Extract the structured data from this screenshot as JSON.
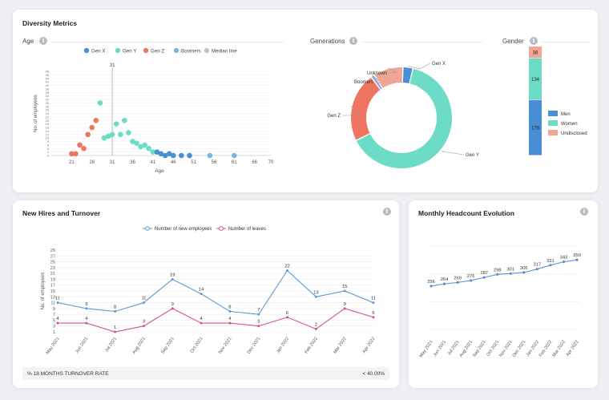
{
  "diversity": {
    "title": "Diversity Metrics",
    "age": {
      "label": "Age",
      "legend": [
        "Gen X",
        "Gen Y",
        "Gen Z",
        "Boomers",
        "Median line"
      ],
      "xlabel": "Age",
      "ylabel": "No. of employees",
      "xticks": [
        "21",
        "26",
        "31",
        "36",
        "41",
        "46",
        "51",
        "56",
        "61",
        "66",
        "70"
      ],
      "yticks": [
        "0",
        "2",
        "4",
        "6",
        "8",
        "10",
        "12",
        "14",
        "16",
        "18",
        "20",
        "22",
        "24",
        "26",
        "28",
        "30",
        "32",
        "34",
        "36",
        "38",
        "40",
        "42",
        "44",
        "46",
        "48"
      ],
      "median_label": "31"
    },
    "generations": {
      "label": "Generations",
      "slices": [
        "Gen X",
        "Gen Y",
        "Gen Z",
        "Boomers",
        "Unknown"
      ]
    },
    "gender": {
      "label": "Gender",
      "legend": [
        "Men",
        "Women",
        "Undisclosed"
      ],
      "values": [
        "178",
        "134",
        "38"
      ]
    }
  },
  "hires": {
    "title": "New Hires and Turnover",
    "legend": [
      "Number of new employees",
      "Number of leaves"
    ],
    "ylabel": "No. of employees",
    "yticks": [
      "1",
      "3",
      "5",
      "7",
      "9",
      "11",
      "13",
      "15",
      "17",
      "19",
      "21",
      "23",
      "25",
      "27",
      "29"
    ],
    "turnover_label": "% 18 MONTHS TURNOVER RATE",
    "turnover_value": "< 40.00%"
  },
  "headcount": {
    "title": "Monthly Headcount Evolution"
  },
  "colors": {
    "genx": "#4a8fd4",
    "geny": "#6ddcc6",
    "genz": "#ee7560",
    "boomers": "#7ab6e0",
    "median": "#c4c4c4",
    "unknown": "#f0a597",
    "hires_line": "#5b9bd5",
    "leaves_line": "#d9566e",
    "headcount_line": "#5b8fd0"
  },
  "chart_data": [
    {
      "type": "scatter",
      "title": "Age",
      "xlabel": "Age",
      "ylabel": "No. of employees",
      "xlim": [
        16,
        70
      ],
      "ylim": [
        0,
        48
      ],
      "median": 31,
      "series": [
        {
          "name": "Gen Z",
          "points": [
            [
              21,
              1
            ],
            [
              22,
              1
            ],
            [
              23,
              6
            ],
            [
              24,
              4
            ],
            [
              25,
              12
            ],
            [
              26,
              16
            ],
            [
              27,
              20
            ]
          ]
        },
        {
          "name": "Gen Y",
          "points": [
            [
              28,
              30
            ],
            [
              29,
              10
            ],
            [
              30,
              11
            ],
            [
              31,
              12
            ],
            [
              32,
              18
            ],
            [
              33,
              12
            ],
            [
              34,
              20
            ],
            [
              35,
              13
            ],
            [
              36,
              8
            ],
            [
              37,
              7
            ],
            [
              38,
              5
            ],
            [
              39,
              6
            ],
            [
              40,
              4
            ],
            [
              41,
              2
            ]
          ]
        },
        {
          "name": "Gen X",
          "points": [
            [
              42,
              2
            ],
            [
              43,
              1
            ],
            [
              44,
              0
            ],
            [
              45,
              1
            ],
            [
              46,
              0
            ],
            [
              48,
              0
            ],
            [
              50,
              0
            ]
          ]
        },
        {
          "name": "Boomers",
          "points": [
            [
              55,
              0
            ],
            [
              61,
              0
            ]
          ]
        }
      ]
    },
    {
      "type": "pie",
      "title": "Generations",
      "categories": [
        "Gen X",
        "Gen Y",
        "Gen Z",
        "Boomers",
        "Unknown"
      ],
      "values": [
        11,
        222,
        77,
        4,
        33
      ]
    },
    {
      "type": "bar",
      "title": "Gender",
      "categories": [
        "Men",
        "Women",
        "Undisclosed"
      ],
      "values": [
        178,
        134,
        38
      ]
    },
    {
      "type": "line",
      "title": "New Hires and Turnover",
      "categories": [
        "May 2021",
        "Jun 2021",
        "Jul 2021",
        "Aug 2021",
        "Sep 2021",
        "Oct 2021",
        "Nov 2021",
        "Dec 2021",
        "Jan 2022",
        "Feb 2022",
        "Mar 2022",
        "Apr 2022"
      ],
      "ylim": [
        1,
        29
      ],
      "series": [
        {
          "name": "Number of new employees",
          "values": [
            11,
            9,
            8,
            11,
            19,
            14,
            8,
            7,
            22,
            13,
            15,
            11
          ]
        },
        {
          "name": "Number of leaves",
          "values": [
            4,
            4,
            1,
            3,
            9,
            4,
            4,
            3,
            6,
            2,
            9,
            6
          ]
        }
      ]
    },
    {
      "type": "line",
      "title": "Monthly Headcount Evolution",
      "categories": [
        "May 2021",
        "Jun 2021",
        "Jul 2021",
        "Aug 2021",
        "Sep 2021",
        "Oct 2021",
        "Nov 2021",
        "Dec 2021",
        "Jan 2022",
        "Feb 2022",
        "Mar 2022",
        "Apr 2022"
      ],
      "series": [
        {
          "values": [
            256,
            264,
            269,
            276,
            287,
            298,
            301,
            305,
            317,
            331,
            343,
            350
          ]
        }
      ]
    }
  ]
}
